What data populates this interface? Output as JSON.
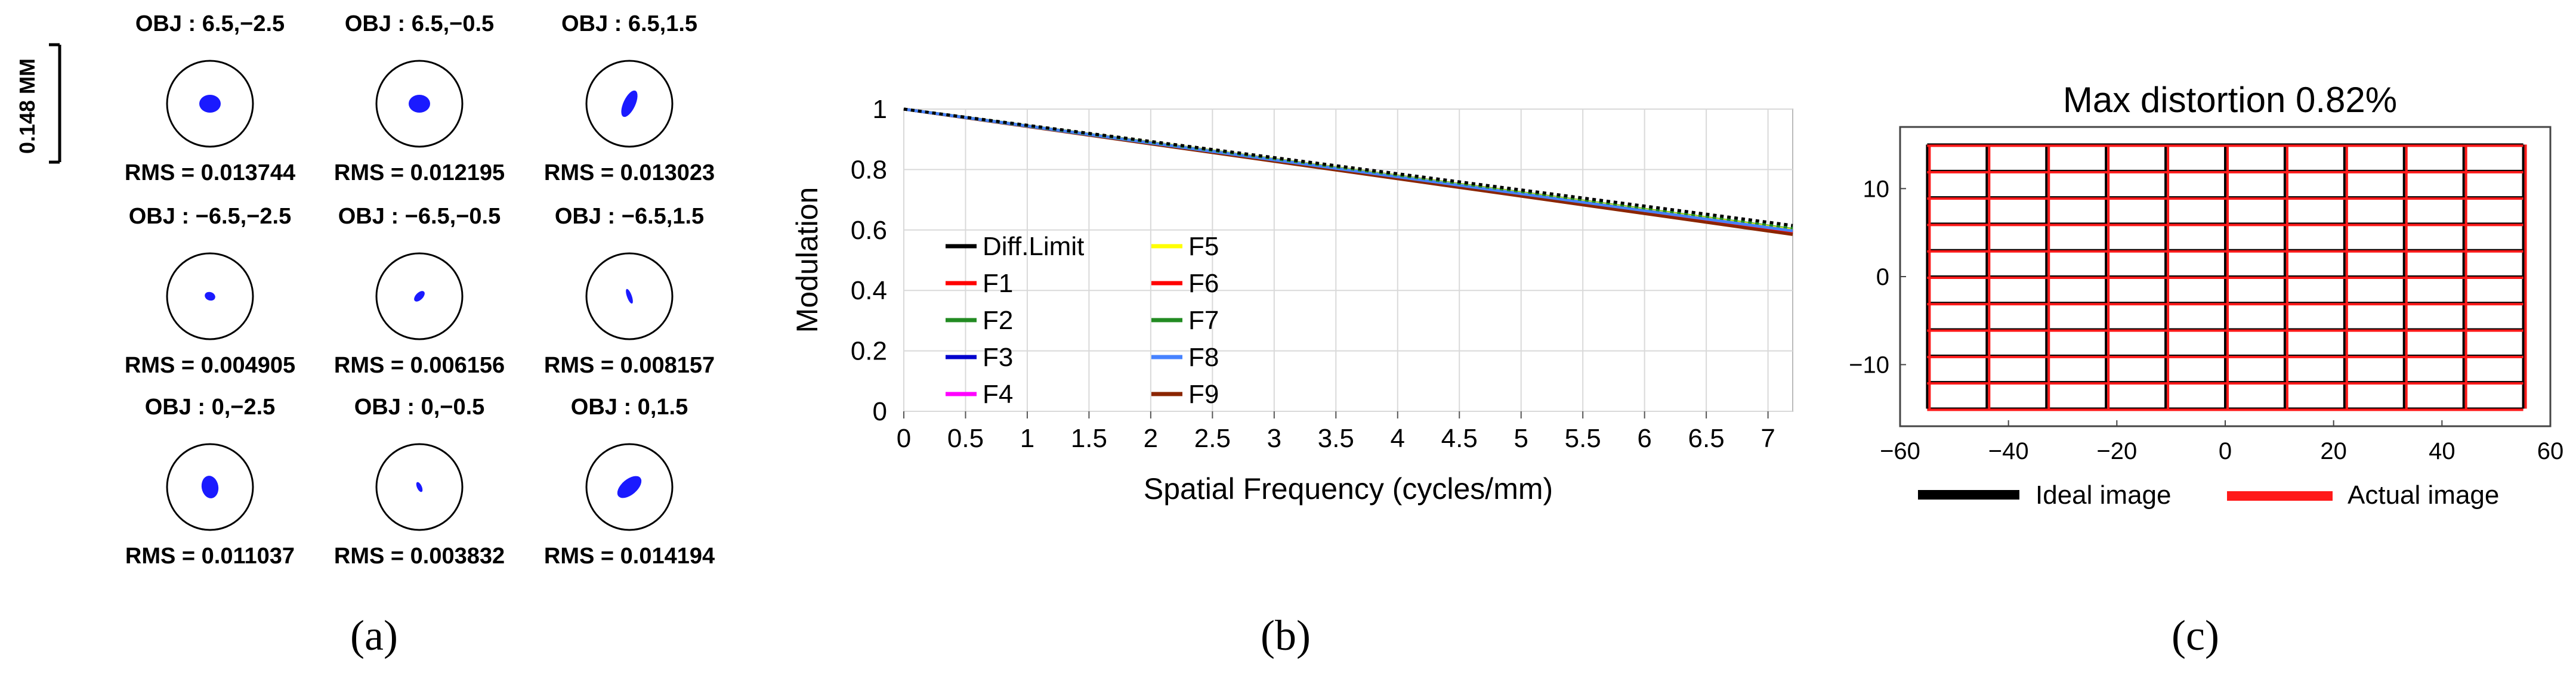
{
  "colors": {
    "spot": "#1a1aff",
    "ideal_grid": "#000000",
    "actual_grid": "#ff1a1a",
    "plot_border": "#444444",
    "gridline": "#d9d9d9"
  },
  "panels": {
    "a": {
      "label": "(a)"
    },
    "b": {
      "label": "(b)"
    },
    "c": {
      "label": "(c)"
    }
  },
  "chart_data": [
    {
      "type": "scatter",
      "panel": "(a)",
      "scale_bar_label": "0.148 MM",
      "spots": [
        {
          "obj": "OBJ : 6.5,−2.5",
          "rms": "RMS = 0.013744",
          "spot_shape": "blob-large"
        },
        {
          "obj": "OBJ : 6.5,−0.5",
          "rms": "RMS = 0.012195",
          "spot_shape": "blob-large"
        },
        {
          "obj": "OBJ : 6.5,1.5",
          "rms": "RMS = 0.013023",
          "spot_shape": "tilted-elongated"
        },
        {
          "obj": "OBJ : −6.5,−2.5",
          "rms": "RMS = 0.004905",
          "spot_shape": "small"
        },
        {
          "obj": "OBJ : −6.5,−0.5",
          "rms": "RMS = 0.006156",
          "spot_shape": "small-tilted"
        },
        {
          "obj": "OBJ : −6.5,1.5",
          "rms": "RMS = 0.008157",
          "spot_shape": "thin-tilted"
        },
        {
          "obj": "OBJ : 0,−2.5",
          "rms": "RMS = 0.011037",
          "spot_shape": "blob-tall"
        },
        {
          "obj": "OBJ : 0,−0.5",
          "rms": "RMS = 0.003832",
          "spot_shape": "tiny"
        },
        {
          "obj": "OBJ : 0,1.5",
          "rms": "RMS = 0.014194",
          "spot_shape": "tilted-large"
        }
      ]
    },
    {
      "type": "line",
      "panel": "(b)",
      "xlabel": "Spatial Frequency (cycles/mm)",
      "ylabel": "Modulation",
      "xlim": [
        0,
        7.2
      ],
      "ylim": [
        0,
        1
      ],
      "xticks": [
        "0",
        "0.5",
        "1",
        "1.5",
        "2",
        "2.5",
        "3",
        "3.5",
        "4",
        "4.5",
        "5",
        "5.5",
        "6",
        "6.5",
        "7"
      ],
      "yticks": [
        "0",
        "0.2",
        "0.4",
        "0.6",
        "0.8",
        "1"
      ],
      "grid": true,
      "legend_position": "lower-left",
      "series": [
        {
          "name": "Diff.Limit",
          "color": "#000000",
          "dash": "dotted",
          "x": [
            0,
            7.2
          ],
          "y": [
            1,
            0.615
          ]
        },
        {
          "name": "F1",
          "color": "#ff0000",
          "x": [
            0,
            7.2
          ],
          "y": [
            1,
            0.59
          ]
        },
        {
          "name": "F2",
          "color": "#228b22",
          "dash": "dotted",
          "x": [
            0,
            7.2
          ],
          "y": [
            1,
            0.607
          ]
        },
        {
          "name": "F3",
          "color": "#0000cd",
          "x": [
            0,
            7.2
          ],
          "y": [
            1,
            0.598
          ]
        },
        {
          "name": "F4",
          "color": "#ff00ff",
          "x": [
            0,
            7.2
          ],
          "y": [
            1,
            0.596
          ]
        },
        {
          "name": "F5",
          "color": "#ffff00",
          "x": [
            0,
            7.2
          ],
          "y": [
            1,
            0.6
          ]
        },
        {
          "name": "F6",
          "color": "#ff0000",
          "x": [
            0,
            7.2
          ],
          "y": [
            1,
            0.594
          ]
        },
        {
          "name": "F7",
          "color": "#228b22",
          "x": [
            0,
            7.2
          ],
          "y": [
            1,
            0.602
          ]
        },
        {
          "name": "F8",
          "color": "#4682ff",
          "x": [
            0,
            7.2
          ],
          "y": [
            1,
            0.597
          ]
        },
        {
          "name": "F9",
          "color": "#8b2500",
          "x": [
            0,
            7.2
          ],
          "y": [
            1,
            0.585
          ]
        }
      ]
    },
    {
      "type": "line",
      "panel": "(c)",
      "title": "Max distortion 0.82%",
      "xlim": [
        -60,
        60
      ],
      "ylim": [
        -17,
        17
      ],
      "xticks": [
        "−60",
        "−40",
        "−20",
        "0",
        "20",
        "40",
        "60"
      ],
      "yticks": [
        "10",
        "0",
        "−10"
      ],
      "grid": false,
      "legend_position": "bottom",
      "grid_x_lines": [
        -55,
        -44,
        -33,
        -22,
        -11,
        0,
        11,
        22,
        33,
        44,
        55
      ],
      "grid_y_lines": [
        -15,
        -12,
        -9,
        -6,
        -3,
        0,
        3,
        6,
        9,
        12,
        15
      ],
      "series": [
        {
          "name": "Ideal image",
          "color": "#000000"
        },
        {
          "name": "Actual image",
          "color": "#ff0000"
        }
      ]
    }
  ]
}
